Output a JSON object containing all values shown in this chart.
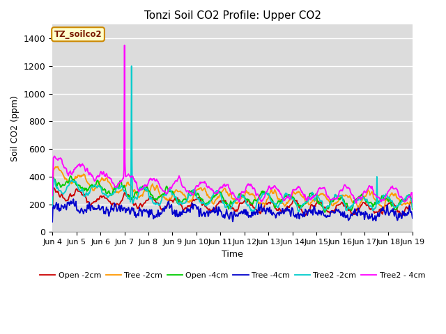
{
  "title": "Tonzi Soil CO2 Profile: Upper CO2",
  "ylabel": "Soil CO2 (ppm)",
  "xlabel": "Time",
  "ylim": [
    0,
    1500
  ],
  "yticks": [
    0,
    200,
    400,
    600,
    800,
    1000,
    1200,
    1400
  ],
  "xtick_labels": [
    "Jun 4",
    "Jun 5",
    "Jun 6",
    "Jun 7",
    "Jun 8",
    "Jun 9",
    "Jun 10",
    "Jun 11",
    "Jun 12",
    "Jun 13",
    "Jun 14",
    "Jun 15",
    "Jun 16",
    "Jun 17",
    "Jun 18",
    "Jun 19"
  ],
  "legend_labels": [
    "Open -2cm",
    "Tree -2cm",
    "Open -4cm",
    "Tree -4cm",
    "Tree2 -2cm",
    "Tree2 - 4cm"
  ],
  "series_colors": [
    "#cc0000",
    "#ff9900",
    "#00cc00",
    "#0000cc",
    "#00cccc",
    "#ff00ff"
  ],
  "annotation_label": "TZ_soilco2",
  "plot_bg_color": "#dcdcdc",
  "fig_bg_color": "#ffffff",
  "n_points": 720,
  "seed": 42
}
